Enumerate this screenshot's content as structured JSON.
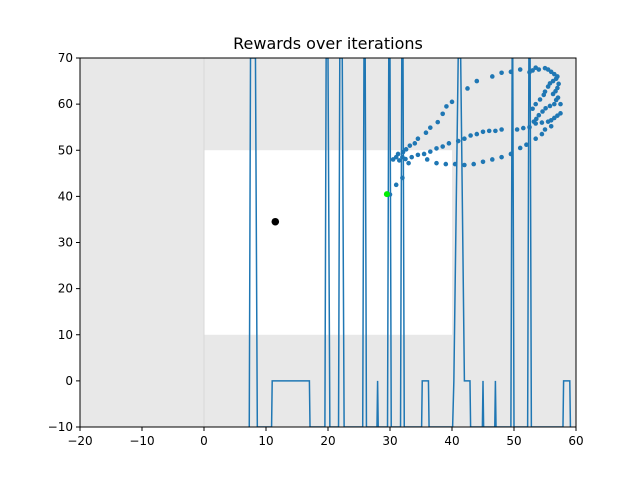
{
  "chart_data": {
    "type": "line",
    "title": "Rewards over iterations",
    "xlabel": "",
    "ylabel": "",
    "xlim": [
      -20,
      60
    ],
    "ylim": [
      -10,
      70
    ],
    "xticks": [
      -20,
      -10,
      0,
      10,
      20,
      30,
      40,
      50,
      60
    ],
    "yticks": [
      -10,
      0,
      10,
      20,
      30,
      40,
      50,
      60,
      70
    ],
    "grid": false,
    "legend": "none",
    "colors": {
      "line": "#1f77b4",
      "scatter": "#1f77b4",
      "shaded_region": "#e8e8e8",
      "clear_region": "#ffffff",
      "agent_marker": "#000000",
      "goal_marker": "#00ee00"
    },
    "regions": {
      "shaded": {
        "x": [
          0,
          60
        ],
        "y": [
          -10,
          70
        ]
      },
      "outside_shaded": {
        "x": [
          -20,
          0
        ],
        "y": [
          -10,
          70
        ]
      },
      "clear": {
        "x": [
          0,
          40
        ],
        "y": [
          10,
          50
        ]
      }
    },
    "series": [
      {
        "type": "line",
        "points": [
          [
            7.3,
            -10
          ],
          [
            7.5,
            70
          ],
          [
            8.3,
            70
          ],
          [
            8.6,
            -10
          ],
          [
            10.9,
            -10
          ],
          [
            11.0,
            0
          ],
          [
            17.0,
            0
          ],
          [
            17.1,
            -10
          ],
          [
            19.5,
            -10
          ],
          [
            19.7,
            70
          ],
          [
            20.0,
            70
          ],
          [
            20.3,
            -10
          ],
          [
            21.7,
            -10
          ],
          [
            21.9,
            70
          ],
          [
            22.3,
            70
          ],
          [
            22.6,
            -10
          ],
          [
            25.6,
            -10
          ],
          [
            25.8,
            70
          ],
          [
            26.0,
            70
          ],
          [
            26.2,
            -10
          ],
          [
            27.9,
            -10
          ],
          [
            28.0,
            0
          ],
          [
            28.1,
            -10
          ],
          [
            29.6,
            -10
          ],
          [
            29.8,
            70
          ],
          [
            30.0,
            70
          ],
          [
            30.2,
            -10
          ],
          [
            31.7,
            -10
          ],
          [
            31.9,
            70
          ],
          [
            32.1,
            70
          ],
          [
            32.3,
            -10
          ],
          [
            35.1,
            -10
          ],
          [
            35.2,
            0
          ],
          [
            36.2,
            0
          ],
          [
            36.3,
            -10
          ],
          [
            40.1,
            -10
          ],
          [
            40.3,
            0
          ],
          [
            41.0,
            70
          ],
          [
            41.4,
            70
          ],
          [
            42.0,
            0
          ],
          [
            42.9,
            0
          ],
          [
            43.0,
            -10
          ],
          [
            44.9,
            -10
          ],
          [
            45.0,
            0
          ],
          [
            45.1,
            -10
          ],
          [
            46.9,
            -10
          ],
          [
            47.0,
            0
          ],
          [
            47.1,
            -10
          ],
          [
            49.5,
            -10
          ],
          [
            49.7,
            70
          ],
          [
            49.8,
            70
          ],
          [
            50.0,
            -10
          ],
          [
            52.2,
            -10
          ],
          [
            52.4,
            70
          ],
          [
            52.6,
            70
          ],
          [
            52.8,
            -10
          ],
          [
            57.9,
            -10
          ],
          [
            58.0,
            0
          ],
          [
            59.0,
            0
          ],
          [
            59.1,
            -10
          ]
        ]
      },
      {
        "type": "scatter",
        "points": [
          [
            30.5,
            48
          ],
          [
            31.0,
            48.5
          ],
          [
            31.5,
            47.8
          ],
          [
            32.0,
            48.5
          ],
          [
            32.5,
            48.1
          ],
          [
            33.5,
            48.5
          ],
          [
            31.3,
            49.2
          ],
          [
            32.1,
            49.6
          ],
          [
            32.6,
            50.2
          ],
          [
            33.0,
            47.2
          ],
          [
            32.0,
            44
          ],
          [
            31.0,
            42.5
          ],
          [
            30.0,
            40.4
          ],
          [
            33.2,
            51
          ],
          [
            34.0,
            51.5
          ],
          [
            34.5,
            52.5
          ],
          [
            35.8,
            53.8
          ],
          [
            36.5,
            54.9
          ],
          [
            37.7,
            56.1
          ],
          [
            38.5,
            57.9
          ],
          [
            39.1,
            59.5
          ],
          [
            40.0,
            60.5
          ],
          [
            42.5,
            63.4
          ],
          [
            44.0,
            65.0
          ],
          [
            46.5,
            66.0
          ],
          [
            48.0,
            66.8
          ],
          [
            49.5,
            67.0
          ],
          [
            51.0,
            67.5
          ],
          [
            52.5,
            66.9
          ],
          [
            53.0,
            67.3
          ],
          [
            53.5,
            67.9
          ],
          [
            54.0,
            67.5
          ],
          [
            55.0,
            67.8
          ],
          [
            55.5,
            67.5
          ],
          [
            56.0,
            67.0
          ],
          [
            56.5,
            66.5
          ],
          [
            57.0,
            66.0
          ],
          [
            56.8,
            65.5
          ],
          [
            56.3,
            65.0
          ],
          [
            55.8,
            64.5
          ],
          [
            55.5,
            63.8
          ],
          [
            57.2,
            64.4
          ],
          [
            57.0,
            63.5
          ],
          [
            56.7,
            62.8
          ],
          [
            56.3,
            62.2
          ],
          [
            57.1,
            61.4
          ],
          [
            56.8,
            60.9
          ],
          [
            56.5,
            60.0
          ],
          [
            55.8,
            59.6
          ],
          [
            55.1,
            59.1
          ],
          [
            54.6,
            58.4
          ],
          [
            54.0,
            57.6
          ],
          [
            53.6,
            56.8
          ],
          [
            53.2,
            56.2
          ],
          [
            53.0,
            59.0
          ],
          [
            53.5,
            60.0
          ],
          [
            54.2,
            61.0
          ],
          [
            54.8,
            62.0
          ],
          [
            55.0,
            62.7
          ],
          [
            57.5,
            60.0
          ],
          [
            57.5,
            58.0
          ],
          [
            57.0,
            57.5
          ],
          [
            56.5,
            57.0
          ],
          [
            56.0,
            56.5
          ],
          [
            55.5,
            56.2
          ],
          [
            54.5,
            56.0
          ],
          [
            53.5,
            55.8
          ],
          [
            52.5,
            55.0
          ],
          [
            51.5,
            54.8
          ],
          [
            50.5,
            54.5
          ],
          [
            48.0,
            54.5
          ],
          [
            47.0,
            54.2
          ],
          [
            46.0,
            54.2
          ],
          [
            45.0,
            54.0
          ],
          [
            44.0,
            53.5
          ],
          [
            43.0,
            53.2
          ],
          [
            42.0,
            52.5
          ],
          [
            41.0,
            52.0
          ],
          [
            39.5,
            51.5
          ],
          [
            38.5,
            50.8
          ],
          [
            37.5,
            50.4
          ],
          [
            36.5,
            49.7
          ],
          [
            35.5,
            49.2
          ],
          [
            34.5,
            49.0
          ],
          [
            36.0,
            48.0
          ],
          [
            37.5,
            47.2
          ],
          [
            39.0,
            47.0
          ],
          [
            40.5,
            47.0
          ],
          [
            42.0,
            46.8
          ],
          [
            43.5,
            47.0
          ],
          [
            45.0,
            47.5
          ],
          [
            46.5,
            48.0
          ],
          [
            48.0,
            48.5
          ],
          [
            49.5,
            49.2
          ],
          [
            51.0,
            50.5
          ],
          [
            52.0,
            51.2
          ],
          [
            53.5,
            52.5
          ],
          [
            54.5,
            53.5
          ],
          [
            55.0,
            54.5
          ],
          [
            56.0,
            55.2
          ]
        ]
      }
    ],
    "markers": [
      {
        "role": "agent",
        "x": 11.5,
        "y": 34.5
      },
      {
        "role": "goal",
        "x": 29.5,
        "y": 40.5
      }
    ]
  }
}
